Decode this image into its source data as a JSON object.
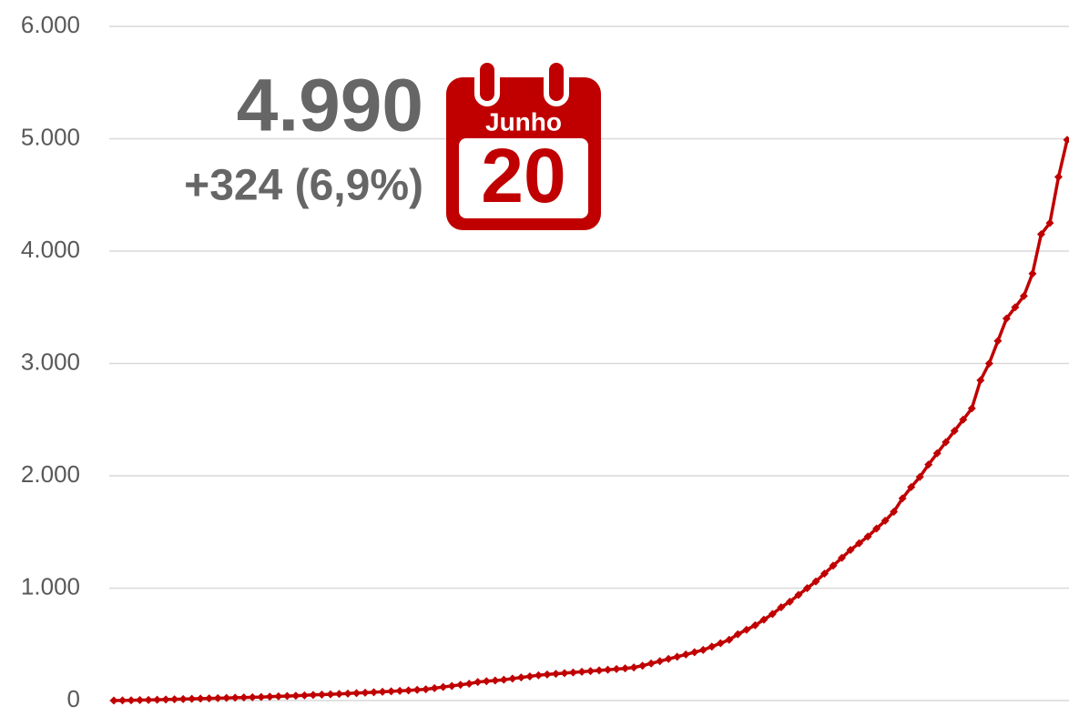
{
  "chart_data": {
    "type": "line",
    "values": [
      0,
      1,
      2,
      4,
      5,
      7,
      9,
      11,
      13,
      15,
      17,
      19,
      21,
      23,
      25,
      27,
      29,
      31,
      34,
      37,
      40,
      43,
      46,
      50,
      53,
      56,
      59,
      62,
      66,
      70,
      74,
      78,
      82,
      86,
      90,
      95,
      100,
      110,
      120,
      130,
      140,
      150,
      165,
      172,
      178,
      185,
      195,
      205,
      215,
      225,
      232,
      238,
      244,
      250,
      256,
      262,
      268,
      274,
      280,
      286,
      295,
      310,
      330,
      350,
      370,
      390,
      410,
      430,
      450,
      480,
      510,
      540,
      590,
      630,
      670,
      720,
      770,
      830,
      880,
      940,
      1000,
      1060,
      1130,
      1200,
      1270,
      1340,
      1400,
      1460,
      1530,
      1600,
      1680,
      1800,
      1900,
      1990,
      2100,
      2200,
      2300,
      2400,
      2500,
      2600,
      2850,
      3000,
      3200,
      3400,
      3500,
      3600,
      3800,
      4150,
      4250,
      4660,
      4990
    ],
    "color": "#c00000",
    "ylim": [
      0,
      6000
    ],
    "yticks": [
      0,
      {
        "value": 1000,
        "label": "1.000"
      },
      {
        "value": 2000,
        "label": "2.000"
      },
      {
        "value": 3000,
        "label": "3.000"
      },
      {
        "value": 4000,
        "label": "4.000"
      },
      {
        "value": 5000,
        "label": "5.000"
      },
      {
        "value": 6000,
        "label": "6.000"
      }
    ],
    "grid": true,
    "annotations": [
      "4.990",
      "+324 (6,9%)",
      "Junho",
      "20"
    ]
  }
}
